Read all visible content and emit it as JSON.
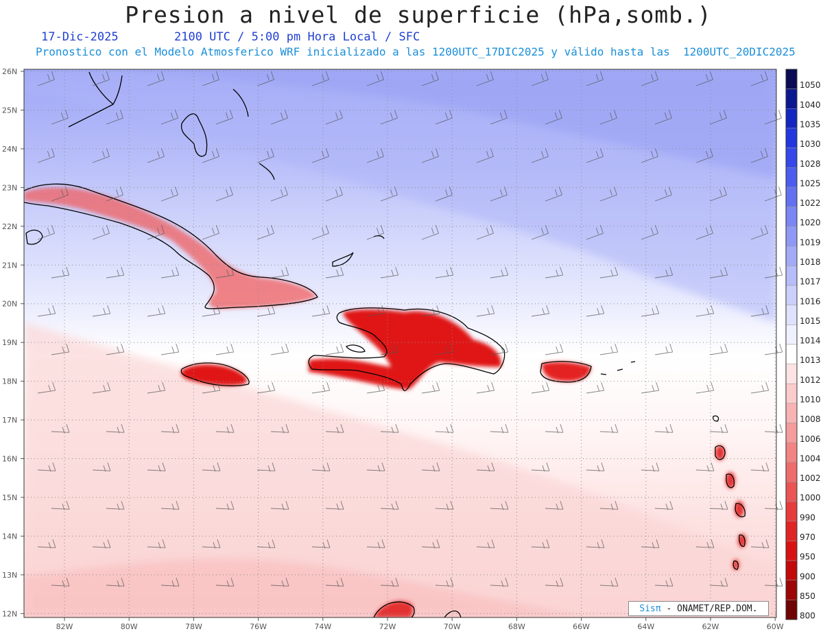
{
  "header": {
    "title": "Presion a nivel de superficie (hPa,somb.)",
    "date": "17-Dic-2025",
    "time_line": "2100 UTC / 5:00 pm Hora Local / SFC",
    "forecast_line": "Pronostico con el Modelo Atmosferico WRF inicializado a las 1200UTC_17DIC2025 y válido hasta las  1200UTC_20DIC2025"
  },
  "axes": {
    "lat_labels": [
      "26N",
      "25N",
      "24N",
      "23N",
      "22N",
      "21N",
      "20N",
      "19N",
      "18N",
      "17N",
      "16N",
      "15N",
      "14N",
      "13N",
      "12N"
    ],
    "lon_labels": [
      "82W",
      "80W",
      "78W",
      "76W",
      "74W",
      "72W",
      "70W",
      "68W",
      "66W",
      "64W",
      "62W",
      "60W"
    ]
  },
  "colorbar": {
    "labels": [
      "1050",
      "1040",
      "1035",
      "1030",
      "1028",
      "1025",
      "1022",
      "1020",
      "1019",
      "1018",
      "1017",
      "1016",
      "1015",
      "1014",
      "1013",
      "1012",
      "1010",
      "1008",
      "1006",
      "1004",
      "1002",
      "1000",
      "990",
      "970",
      "950",
      "900",
      "850",
      "800"
    ],
    "colors": [
      "#0a0a55",
      "#0c1890",
      "#1426c0",
      "#2237dd",
      "#3648e8",
      "#4c5cee",
      "#6371f0",
      "#7a86f3",
      "#8f99f5",
      "#a3abf7",
      "#b7bdf9",
      "#cbd0fb",
      "#dfe2fc",
      "#f0f1fe",
      "#ffffff",
      "#fde3e3",
      "#fbcccc",
      "#f8b4b4",
      "#f59c9c",
      "#f28484",
      "#ee6c6c",
      "#eb5454",
      "#e63c3c",
      "#e02424",
      "#d81212",
      "#c20a0a",
      "#9c0606",
      "#700303"
    ]
  },
  "credit": {
    "sis": "Sisπ",
    "text": "- ONAMET/REP.DOM."
  }
}
